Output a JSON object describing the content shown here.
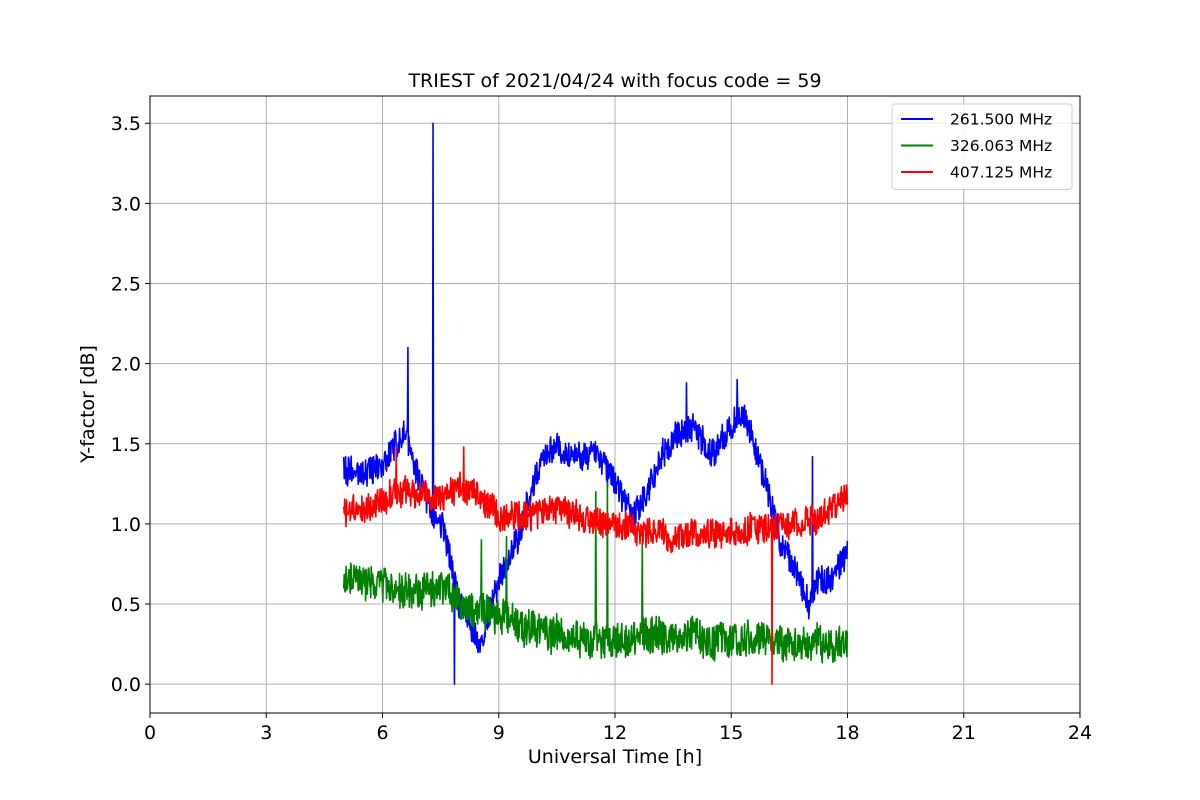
{
  "chart_data": {
    "type": "line",
    "title": "TRIEST of 2021/04/24 with focus code = 59",
    "xlabel": "Universal Time [h]",
    "ylabel": "Y-factor [dB]",
    "xlim": [
      0,
      24
    ],
    "ylim": [
      -0.18,
      3.67
    ],
    "xticks": [
      0,
      3,
      6,
      9,
      12,
      15,
      18,
      21,
      24
    ],
    "xtick_labels": [
      "0",
      "3",
      "6",
      "9",
      "12",
      "15",
      "18",
      "21",
      "24"
    ],
    "yticks": [
      0.0,
      0.5,
      1.0,
      1.5,
      2.0,
      2.5,
      3.0,
      3.5
    ],
    "ytick_labels": [
      "0.0",
      "0.5",
      "1.0",
      "1.5",
      "2.0",
      "2.5",
      "3.0",
      "3.5"
    ],
    "grid": true,
    "legend_position": "top-right",
    "series": [
      {
        "name": "261.500 MHz",
        "color": "#0000ff",
        "x": [
          5.0,
          5.5,
          6.0,
          6.3,
          6.6,
          6.9,
          7.2,
          7.6,
          8.0,
          8.5,
          9.0,
          9.5,
          10.0,
          10.5,
          11.0,
          11.5,
          12.0,
          12.5,
          13.0,
          13.5,
          14.0,
          14.5,
          15.0,
          15.3,
          15.6,
          16.0,
          16.3,
          16.6,
          17.0,
          17.3,
          17.6,
          18.0
        ],
        "values": [
          1.35,
          1.3,
          1.35,
          1.5,
          1.55,
          1.3,
          1.1,
          0.95,
          0.5,
          0.25,
          0.65,
          0.9,
          1.35,
          1.5,
          1.4,
          1.45,
          1.25,
          1.05,
          1.3,
          1.55,
          1.6,
          1.45,
          1.6,
          1.7,
          1.5,
          1.15,
          0.85,
          0.75,
          0.5,
          0.65,
          0.65,
          0.85
        ],
        "spikes": [
          {
            "x": 7.3,
            "value": 3.5
          },
          {
            "x": 6.65,
            "value": 2.1
          },
          {
            "x": 7.85,
            "value": 0.0
          },
          {
            "x": 17.1,
            "value": 1.42
          },
          {
            "x": 15.15,
            "value": 1.9
          },
          {
            "x": 13.85,
            "value": 1.88
          }
        ]
      },
      {
        "name": "326.063 MHz",
        "color": "#008000",
        "x": [
          5.0,
          5.5,
          6.0,
          6.5,
          7.0,
          7.5,
          8.0,
          8.5,
          9.0,
          9.5,
          10.0,
          10.5,
          11.0,
          11.5,
          12.0,
          12.5,
          13.0,
          13.5,
          14.0,
          14.5,
          15.0,
          15.5,
          16.0,
          16.5,
          17.0,
          17.5,
          18.0
        ],
        "values": [
          0.65,
          0.63,
          0.62,
          0.6,
          0.58,
          0.6,
          0.5,
          0.45,
          0.42,
          0.38,
          0.33,
          0.3,
          0.28,
          0.28,
          0.27,
          0.3,
          0.32,
          0.28,
          0.3,
          0.25,
          0.28,
          0.28,
          0.25,
          0.25,
          0.27,
          0.25,
          0.25
        ],
        "spikes": [
          {
            "x": 11.8,
            "value": 1.25
          },
          {
            "x": 11.5,
            "value": 1.2
          },
          {
            "x": 8.55,
            "value": 0.9
          },
          {
            "x": 9.2,
            "value": 0.92
          },
          {
            "x": 12.7,
            "value": 0.9
          }
        ]
      },
      {
        "name": "407.125 MHz",
        "color": "#ff0000",
        "x": [
          5.0,
          5.5,
          6.0,
          6.5,
          7.0,
          7.5,
          8.0,
          8.5,
          9.0,
          9.5,
          10.0,
          10.5,
          11.0,
          11.5,
          12.0,
          12.5,
          13.0,
          13.5,
          14.0,
          14.5,
          15.0,
          15.5,
          16.0,
          16.5,
          17.0,
          17.5,
          18.0
        ],
        "values": [
          1.05,
          1.1,
          1.15,
          1.2,
          1.2,
          1.15,
          1.25,
          1.15,
          1.05,
          1.05,
          1.05,
          1.1,
          1.05,
          1.0,
          1.0,
          0.95,
          0.95,
          0.9,
          0.95,
          0.95,
          0.95,
          0.98,
          0.98,
          1.0,
          1.02,
          1.08,
          1.15
        ],
        "spikes": [
          {
            "x": 16.05,
            "value": 0.0
          },
          {
            "x": 6.35,
            "value": 1.48
          },
          {
            "x": 8.1,
            "value": 1.48
          }
        ]
      }
    ]
  }
}
